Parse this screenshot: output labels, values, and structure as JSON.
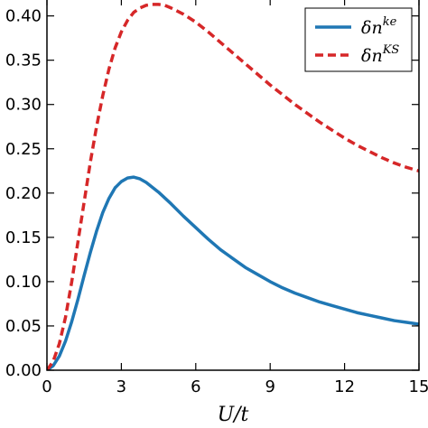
{
  "chart_data": {
    "type": "line",
    "title": "",
    "xlabel": "U/t",
    "ylabel": "",
    "xlim": [
      0,
      15
    ],
    "ylim": [
      0,
      0.42
    ],
    "x_ticks": [
      0,
      3,
      6,
      9,
      12,
      15
    ],
    "x_tick_labels": [
      "0",
      "3",
      "6",
      "9",
      "12",
      "15"
    ],
    "y_ticks": [
      0.0,
      0.05,
      0.1,
      0.15,
      0.2,
      0.25,
      0.3,
      0.35,
      0.4
    ],
    "y_tick_labels": [
      "0.00",
      "0.05",
      "0.10",
      "0.15",
      "0.20",
      "0.25",
      "0.30",
      "0.35",
      "0.40"
    ],
    "grid": false,
    "legend_position": "top-right",
    "series": [
      {
        "name": "δn^ke",
        "label_base": "δn",
        "label_sup": "ke",
        "color": "#1f77b4",
        "style": "solid",
        "x": [
          0,
          0.25,
          0.5,
          0.75,
          1,
          1.25,
          1.5,
          1.75,
          2,
          2.25,
          2.5,
          2.75,
          3,
          3.25,
          3.5,
          3.75,
          4,
          4.5,
          5,
          5.5,
          6,
          6.5,
          7,
          7.5,
          8,
          8.5,
          9,
          9.5,
          10,
          10.5,
          11,
          11.5,
          12,
          12.5,
          13,
          13.5,
          14,
          14.5,
          15
        ],
        "y": [
          0,
          0.005,
          0.016,
          0.033,
          0.055,
          0.08,
          0.107,
          0.133,
          0.157,
          0.178,
          0.194,
          0.206,
          0.213,
          0.217,
          0.218,
          0.216,
          0.212,
          0.201,
          0.188,
          0.174,
          0.161,
          0.148,
          0.136,
          0.126,
          0.116,
          0.108,
          0.1,
          0.093,
          0.087,
          0.082,
          0.077,
          0.073,
          0.069,
          0.065,
          0.062,
          0.059,
          0.056,
          0.054,
          0.052
        ]
      },
      {
        "name": "δn^KS",
        "label_base": "δn",
        "label_sup": "KS",
        "color": "#d62728",
        "style": "dashed",
        "x": [
          0,
          0.25,
          0.5,
          0.75,
          1,
          1.25,
          1.5,
          1.75,
          2,
          2.25,
          2.5,
          2.75,
          3,
          3.25,
          3.5,
          3.75,
          4,
          4.25,
          4.5,
          4.75,
          5,
          5.5,
          6,
          6.5,
          7,
          7.5,
          8,
          8.5,
          9,
          9.5,
          10,
          10.5,
          11,
          11.5,
          12,
          12.5,
          13,
          13.5,
          14,
          14.5,
          15
        ],
        "y": [
          0,
          0.01,
          0.03,
          0.06,
          0.1,
          0.145,
          0.19,
          0.235,
          0.275,
          0.31,
          0.34,
          0.364,
          0.382,
          0.395,
          0.404,
          0.409,
          0.412,
          0.413,
          0.413,
          0.412,
          0.409,
          0.402,
          0.393,
          0.382,
          0.37,
          0.358,
          0.346,
          0.334,
          0.322,
          0.311,
          0.3,
          0.29,
          0.28,
          0.271,
          0.262,
          0.254,
          0.247,
          0.24,
          0.234,
          0.229,
          0.225
        ]
      }
    ]
  }
}
